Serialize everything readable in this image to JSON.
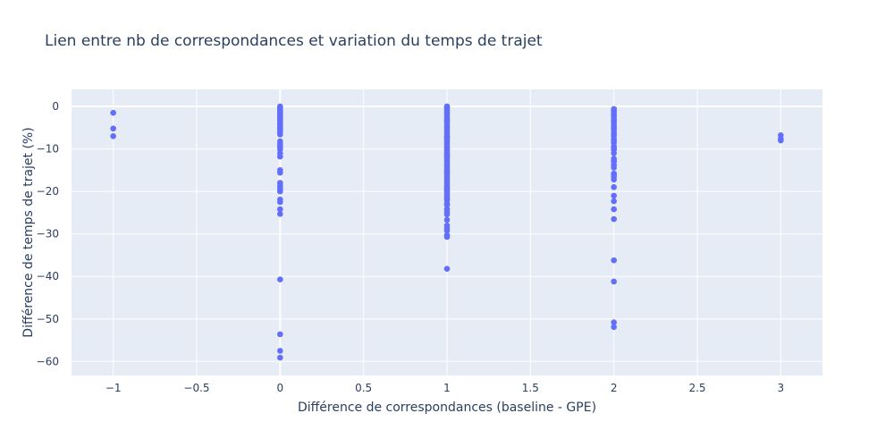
{
  "chart_data": {
    "type": "scatter",
    "title": "Lien entre nb de correspondances et variation du temps de trajet",
    "xlabel": "Différence de correspondances (baseline - GPE)",
    "ylabel": "Différence de temps de trajet (%)",
    "xlim": [
      -1.25,
      3.25
    ],
    "ylim": [
      -63.3,
      4
    ],
    "xticks": [
      -1,
      -0.5,
      0,
      0.5,
      1,
      1.5,
      2,
      2.5,
      3
    ],
    "xtick_labels": [
      "−1",
      "−0.5",
      "0",
      "0.5",
      "1",
      "1.5",
      "2",
      "2.5",
      "3"
    ],
    "yticks": [
      0,
      -10,
      -20,
      -30,
      -40,
      -50,
      -60
    ],
    "ytick_labels": [
      "0",
      "−10",
      "−20",
      "−30",
      "−40",
      "−50",
      "−60"
    ],
    "grid": true,
    "legend": "none",
    "colors": {
      "marker": "#636efa",
      "plot_bg": "#e5ecf6",
      "grid": "#ffffff",
      "text": "#2a3f5f"
    },
    "series": [
      {
        "x": [
          -1,
          -1,
          -1
        ],
        "y": [
          -1.5,
          -5.2,
          -7
        ]
      },
      {
        "x": [
          0,
          0,
          0,
          0,
          0,
          0,
          0,
          0,
          0,
          0,
          0,
          0,
          0,
          0,
          0,
          0,
          0,
          0,
          0,
          0,
          0,
          0,
          0,
          0,
          0,
          0,
          0,
          0,
          0,
          0,
          0,
          0,
          0,
          0,
          0,
          0,
          0,
          0,
          0,
          0,
          0,
          0,
          0,
          0,
          0,
          0
        ],
        "y": [
          0,
          -0.4,
          -0.8,
          -1.2,
          -1.6,
          -2,
          -2.4,
          -2.8,
          -3.2,
          -3.6,
          -4,
          -4.5,
          -5,
          -5.5,
          -6,
          -6.6,
          -8.2,
          -8.8,
          -9.5,
          -10.1,
          -11,
          -11.8,
          -15,
          -15.6,
          -18,
          -19,
          -20,
          -21.9,
          -22.5,
          -24.2,
          -25.3,
          -40.7,
          -53.6,
          -57.5,
          -59.1,
          -0.2,
          -1,
          -1.8,
          -2.6,
          -3.4,
          -4.2,
          -5.2,
          -6.2,
          -9.1,
          -18.6,
          -19.6
        ],
        "note_only_for_count": ""
      },
      {
        "x": [
          1,
          1,
          1,
          1,
          1,
          1,
          1,
          1,
          1,
          1,
          1,
          1,
          1,
          1,
          1,
          1,
          1,
          1,
          1,
          1,
          1,
          1,
          1,
          1,
          1,
          1,
          1,
          1,
          1,
          1,
          1,
          1,
          1,
          1,
          1,
          1,
          1,
          1,
          1,
          1,
          1,
          1,
          1,
          1,
          1,
          1,
          1,
          1,
          1,
          1,
          1,
          1,
          1,
          1,
          1,
          1,
          1,
          1,
          1,
          1,
          1,
          1,
          1
        ],
        "y": [
          0,
          -0.5,
          -1,
          -1.5,
          -2,
          -2.5,
          -3,
          -3.5,
          -4,
          -4.5,
          -5,
          -5.5,
          -6,
          -6.5,
          -7,
          -7.5,
          -8,
          -8.5,
          -9,
          -9.5,
          -10,
          -10.5,
          -11,
          -11.5,
          -12,
          -12.5,
          -13,
          -13.5,
          -14,
          -14.5,
          -15,
          -15.5,
          -16,
          -16.5,
          -17,
          -17.5,
          -18,
          -18.5,
          -19,
          -19.5,
          -20,
          -20.5,
          -21,
          -21.5,
          -22,
          -22.8,
          -24.2,
          -24.8,
          -25.4,
          -26.7,
          -28,
          -28.7,
          -29.2,
          -30.3,
          -30.7,
          -38.2,
          -0.2,
          -3.2,
          -7.2,
          -11.2,
          -15.2,
          -19.2,
          -23.2
        ]
      },
      {
        "x": [
          2,
          2,
          2,
          2,
          2,
          2,
          2,
          2,
          2,
          2,
          2,
          2,
          2,
          2,
          2,
          2,
          2,
          2,
          2,
          2,
          2,
          2,
          2,
          2,
          2,
          2,
          2,
          2,
          2,
          2,
          2,
          2,
          2,
          2,
          2,
          2,
          2,
          2,
          2,
          2,
          2
        ],
        "y": [
          -0.6,
          -1.2,
          -1.8,
          -2.4,
          -3,
          -3.6,
          -4.2,
          -4.8,
          -5.5,
          -6.2,
          -7,
          -7.8,
          -8.6,
          -9.4,
          -10.2,
          -11,
          -12.3,
          -13,
          -13.8,
          -14.4,
          -15.8,
          -16.5,
          -17.2,
          -19,
          -21,
          -22.3,
          -24.2,
          -26.5,
          -36.2,
          -41.2,
          -50.8,
          -51.9,
          -0.9,
          -2.1,
          -3.3,
          -5.2,
          -6.6,
          -8.2,
          -9.8,
          -12.8,
          -16.2
        ]
      },
      {
        "x": [
          3,
          3,
          3
        ],
        "y": [
          -6.8,
          -7.6,
          -8
        ]
      }
    ]
  }
}
